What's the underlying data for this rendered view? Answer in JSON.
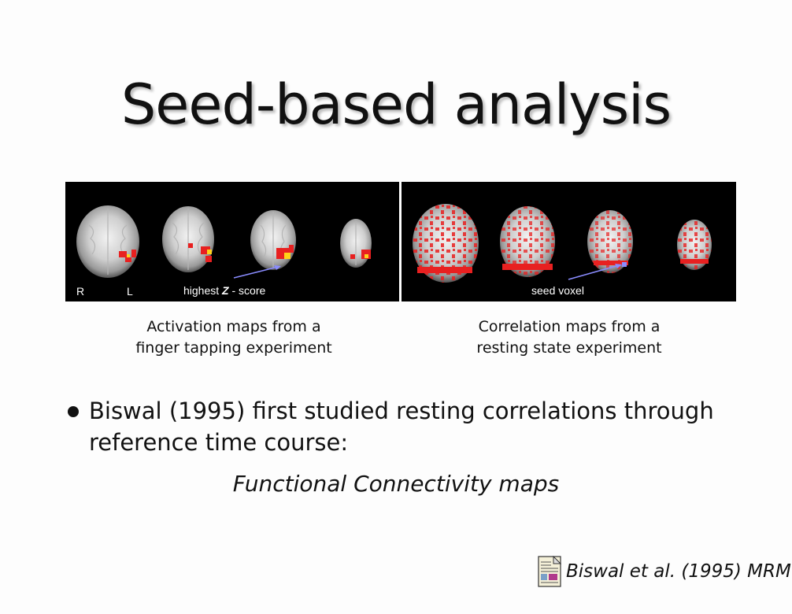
{
  "slide": {
    "title": "Seed-based analysis",
    "left_panel": {
      "label_r": "R",
      "label_l": "L",
      "annotation_prefix": "highest ",
      "annotation_z": "Z",
      "annotation_suffix": " - score",
      "caption_line1": "Activation maps from a",
      "caption_line2": "finger tapping experiment"
    },
    "right_panel": {
      "annotation": "seed voxel",
      "caption_line1": "Correlation maps from a",
      "caption_line2": "resting state experiment"
    },
    "bullet": {
      "line1": "Biswal (1995) first studied resting correlations through",
      "line2": "reference time course:"
    },
    "subtitle": "Functional Connectivity maps",
    "reference": {
      "icon": "document-icon",
      "text": "Biswal et al. (1995) MRM"
    }
  }
}
